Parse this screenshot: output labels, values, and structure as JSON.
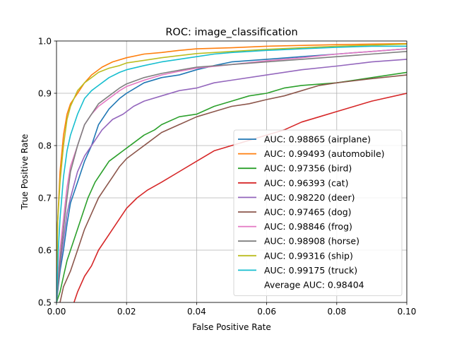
{
  "chart_data": {
    "type": "line",
    "title": "ROC: image_classification",
    "xlabel": "False Positive Rate",
    "ylabel": "True Positive Rate",
    "xlim": [
      0,
      0.1
    ],
    "ylim": [
      0.5,
      1.0
    ],
    "xticks": [
      "0.00",
      "0.02",
      "0.04",
      "0.06",
      "0.08",
      "0.10"
    ],
    "yticks": [
      "0.5",
      "0.6",
      "0.7",
      "0.8",
      "0.9",
      "1.0"
    ],
    "grid": true,
    "legend_position": "lower-right",
    "legend_footer": "Average AUC: 0.98404",
    "series": [
      {
        "name": "AUC: 0.98865 (airplane)",
        "color": "#1f77b4",
        "points": [
          [
            0,
            0.5
          ],
          [
            0.001,
            0.56
          ],
          [
            0.002,
            0.6
          ],
          [
            0.003,
            0.65
          ],
          [
            0.004,
            0.69
          ],
          [
            0.006,
            0.73
          ],
          [
            0.008,
            0.77
          ],
          [
            0.01,
            0.8
          ],
          [
            0.012,
            0.84
          ],
          [
            0.015,
            0.87
          ],
          [
            0.018,
            0.89
          ],
          [
            0.02,
            0.9
          ],
          [
            0.025,
            0.92
          ],
          [
            0.03,
            0.93
          ],
          [
            0.035,
            0.935
          ],
          [
            0.04,
            0.945
          ],
          [
            0.045,
            0.953
          ],
          [
            0.05,
            0.96
          ],
          [
            0.06,
            0.965
          ],
          [
            0.07,
            0.97
          ],
          [
            0.08,
            0.975
          ],
          [
            0.09,
            0.98
          ],
          [
            0.1,
            0.985
          ]
        ]
      },
      {
        "name": "AUC: 0.99493 (automobile)",
        "color": "#ff7f0e",
        "points": [
          [
            0,
            0.5
          ],
          [
            0.0003,
            0.65
          ],
          [
            0.001,
            0.75
          ],
          [
            0.002,
            0.82
          ],
          [
            0.003,
            0.86
          ],
          [
            0.004,
            0.88
          ],
          [
            0.006,
            0.9
          ],
          [
            0.008,
            0.92
          ],
          [
            0.01,
            0.935
          ],
          [
            0.013,
            0.95
          ],
          [
            0.016,
            0.96
          ],
          [
            0.02,
            0.968
          ],
          [
            0.025,
            0.975
          ],
          [
            0.03,
            0.978
          ],
          [
            0.035,
            0.982
          ],
          [
            0.04,
            0.985
          ],
          [
            0.05,
            0.987
          ],
          [
            0.06,
            0.99
          ],
          [
            0.08,
            0.993
          ],
          [
            0.1,
            0.995
          ]
        ]
      },
      {
        "name": "AUC: 0.97356 (bird)",
        "color": "#2ca02c",
        "points": [
          [
            0,
            0.5
          ],
          [
            0.001,
            0.52
          ],
          [
            0.002,
            0.55
          ],
          [
            0.003,
            0.58
          ],
          [
            0.005,
            0.62
          ],
          [
            0.007,
            0.66
          ],
          [
            0.009,
            0.7
          ],
          [
            0.011,
            0.73
          ],
          [
            0.013,
            0.75
          ],
          [
            0.015,
            0.77
          ],
          [
            0.017,
            0.78
          ],
          [
            0.019,
            0.79
          ],
          [
            0.022,
            0.805
          ],
          [
            0.025,
            0.82
          ],
          [
            0.028,
            0.83
          ],
          [
            0.03,
            0.84
          ],
          [
            0.035,
            0.855
          ],
          [
            0.04,
            0.86
          ],
          [
            0.045,
            0.875
          ],
          [
            0.05,
            0.885
          ],
          [
            0.055,
            0.895
          ],
          [
            0.06,
            0.9
          ],
          [
            0.065,
            0.91
          ],
          [
            0.07,
            0.915
          ],
          [
            0.08,
            0.92
          ],
          [
            0.09,
            0.93
          ],
          [
            0.1,
            0.94
          ]
        ]
      },
      {
        "name": "AUC: 0.96393 (cat)",
        "color": "#d62728",
        "points": [
          [
            0.005,
            0.5
          ],
          [
            0.006,
            0.52
          ],
          [
            0.008,
            0.55
          ],
          [
            0.01,
            0.57
          ],
          [
            0.012,
            0.6
          ],
          [
            0.015,
            0.63
          ],
          [
            0.018,
            0.66
          ],
          [
            0.02,
            0.68
          ],
          [
            0.023,
            0.7
          ],
          [
            0.026,
            0.715
          ],
          [
            0.03,
            0.73
          ],
          [
            0.035,
            0.75
          ],
          [
            0.04,
            0.77
          ],
          [
            0.045,
            0.79
          ],
          [
            0.05,
            0.8
          ],
          [
            0.055,
            0.81
          ],
          [
            0.06,
            0.82
          ],
          [
            0.065,
            0.83
          ],
          [
            0.07,
            0.845
          ],
          [
            0.075,
            0.855
          ],
          [
            0.08,
            0.865
          ],
          [
            0.085,
            0.875
          ],
          [
            0.09,
            0.885
          ],
          [
            0.1,
            0.9
          ]
        ]
      },
      {
        "name": "AUC: 0.98220 (deer)",
        "color": "#9467bd",
        "points": [
          [
            0,
            0.5
          ],
          [
            0.001,
            0.57
          ],
          [
            0.002,
            0.62
          ],
          [
            0.003,
            0.67
          ],
          [
            0.004,
            0.7
          ],
          [
            0.006,
            0.75
          ],
          [
            0.008,
            0.78
          ],
          [
            0.01,
            0.8
          ],
          [
            0.013,
            0.83
          ],
          [
            0.016,
            0.85
          ],
          [
            0.019,
            0.86
          ],
          [
            0.022,
            0.875
          ],
          [
            0.025,
            0.885
          ],
          [
            0.03,
            0.895
          ],
          [
            0.035,
            0.905
          ],
          [
            0.04,
            0.91
          ],
          [
            0.045,
            0.92
          ],
          [
            0.05,
            0.925
          ],
          [
            0.06,
            0.935
          ],
          [
            0.07,
            0.945
          ],
          [
            0.08,
            0.952
          ],
          [
            0.09,
            0.96
          ],
          [
            0.1,
            0.965
          ]
        ]
      },
      {
        "name": "AUC: 0.97465 (dog)",
        "color": "#8c564b",
        "points": [
          [
            0.001,
            0.5
          ],
          [
            0.002,
            0.53
          ],
          [
            0.004,
            0.56
          ],
          [
            0.006,
            0.6
          ],
          [
            0.008,
            0.64
          ],
          [
            0.01,
            0.67
          ],
          [
            0.012,
            0.7
          ],
          [
            0.014,
            0.72
          ],
          [
            0.016,
            0.74
          ],
          [
            0.018,
            0.76
          ],
          [
            0.02,
            0.775
          ],
          [
            0.023,
            0.79
          ],
          [
            0.026,
            0.805
          ],
          [
            0.03,
            0.825
          ],
          [
            0.035,
            0.84
          ],
          [
            0.04,
            0.855
          ],
          [
            0.045,
            0.865
          ],
          [
            0.05,
            0.875
          ],
          [
            0.055,
            0.88
          ],
          [
            0.06,
            0.888
          ],
          [
            0.065,
            0.895
          ],
          [
            0.07,
            0.905
          ],
          [
            0.075,
            0.915
          ],
          [
            0.08,
            0.92
          ],
          [
            0.09,
            0.928
          ],
          [
            0.1,
            0.935
          ]
        ]
      },
      {
        "name": "AUC: 0.98846 (frog)",
        "color": "#e377c2",
        "points": [
          [
            0,
            0.5
          ],
          [
            0.001,
            0.6
          ],
          [
            0.002,
            0.66
          ],
          [
            0.003,
            0.72
          ],
          [
            0.004,
            0.76
          ],
          [
            0.006,
            0.8
          ],
          [
            0.008,
            0.84
          ],
          [
            0.01,
            0.86
          ],
          [
            0.012,
            0.875
          ],
          [
            0.015,
            0.89
          ],
          [
            0.018,
            0.905
          ],
          [
            0.02,
            0.913
          ],
          [
            0.025,
            0.925
          ],
          [
            0.03,
            0.935
          ],
          [
            0.035,
            0.942
          ],
          [
            0.04,
            0.948
          ],
          [
            0.05,
            0.955
          ],
          [
            0.06,
            0.962
          ],
          [
            0.07,
            0.968
          ],
          [
            0.08,
            0.975
          ],
          [
            0.09,
            0.98
          ],
          [
            0.1,
            0.985
          ]
        ]
      },
      {
        "name": "AUC: 0.98908 (horse)",
        "color": "#7f7f7f",
        "points": [
          [
            0,
            0.5
          ],
          [
            0.001,
            0.58
          ],
          [
            0.002,
            0.64
          ],
          [
            0.003,
            0.7
          ],
          [
            0.004,
            0.75
          ],
          [
            0.006,
            0.8
          ],
          [
            0.008,
            0.84
          ],
          [
            0.01,
            0.86
          ],
          [
            0.012,
            0.88
          ],
          [
            0.015,
            0.895
          ],
          [
            0.018,
            0.91
          ],
          [
            0.02,
            0.918
          ],
          [
            0.025,
            0.93
          ],
          [
            0.03,
            0.938
          ],
          [
            0.035,
            0.944
          ],
          [
            0.04,
            0.95
          ],
          [
            0.05,
            0.955
          ],
          [
            0.06,
            0.96
          ],
          [
            0.07,
            0.965
          ],
          [
            0.08,
            0.97
          ],
          [
            0.09,
            0.975
          ],
          [
            0.1,
            0.98
          ]
        ]
      },
      {
        "name": "AUC: 0.99316 (ship)",
        "color": "#bcbd22",
        "points": [
          [
            0,
            0.5
          ],
          [
            0.0003,
            0.65
          ],
          [
            0.001,
            0.73
          ],
          [
            0.002,
            0.8
          ],
          [
            0.003,
            0.85
          ],
          [
            0.004,
            0.875
          ],
          [
            0.006,
            0.905
          ],
          [
            0.008,
            0.92
          ],
          [
            0.01,
            0.93
          ],
          [
            0.012,
            0.94
          ],
          [
            0.015,
            0.948
          ],
          [
            0.018,
            0.953
          ],
          [
            0.02,
            0.958
          ],
          [
            0.025,
            0.963
          ],
          [
            0.03,
            0.968
          ],
          [
            0.035,
            0.972
          ],
          [
            0.04,
            0.976
          ],
          [
            0.05,
            0.98
          ],
          [
            0.06,
            0.984
          ],
          [
            0.07,
            0.987
          ],
          [
            0.08,
            0.99
          ],
          [
            0.09,
            0.992
          ],
          [
            0.1,
            0.994
          ]
        ]
      },
      {
        "name": "AUC: 0.99175 (truck)",
        "color": "#17becf",
        "points": [
          [
            0,
            0.5
          ],
          [
            0.0005,
            0.6
          ],
          [
            0.001,
            0.66
          ],
          [
            0.002,
            0.74
          ],
          [
            0.003,
            0.79
          ],
          [
            0.004,
            0.82
          ],
          [
            0.006,
            0.86
          ],
          [
            0.008,
            0.89
          ],
          [
            0.01,
            0.905
          ],
          [
            0.012,
            0.915
          ],
          [
            0.015,
            0.93
          ],
          [
            0.018,
            0.94
          ],
          [
            0.02,
            0.945
          ],
          [
            0.025,
            0.953
          ],
          [
            0.03,
            0.96
          ],
          [
            0.035,
            0.965
          ],
          [
            0.04,
            0.97
          ],
          [
            0.045,
            0.975
          ],
          [
            0.05,
            0.978
          ],
          [
            0.06,
            0.982
          ],
          [
            0.07,
            0.985
          ],
          [
            0.08,
            0.988
          ],
          [
            0.09,
            0.99
          ],
          [
            0.1,
            0.99
          ]
        ]
      }
    ]
  }
}
